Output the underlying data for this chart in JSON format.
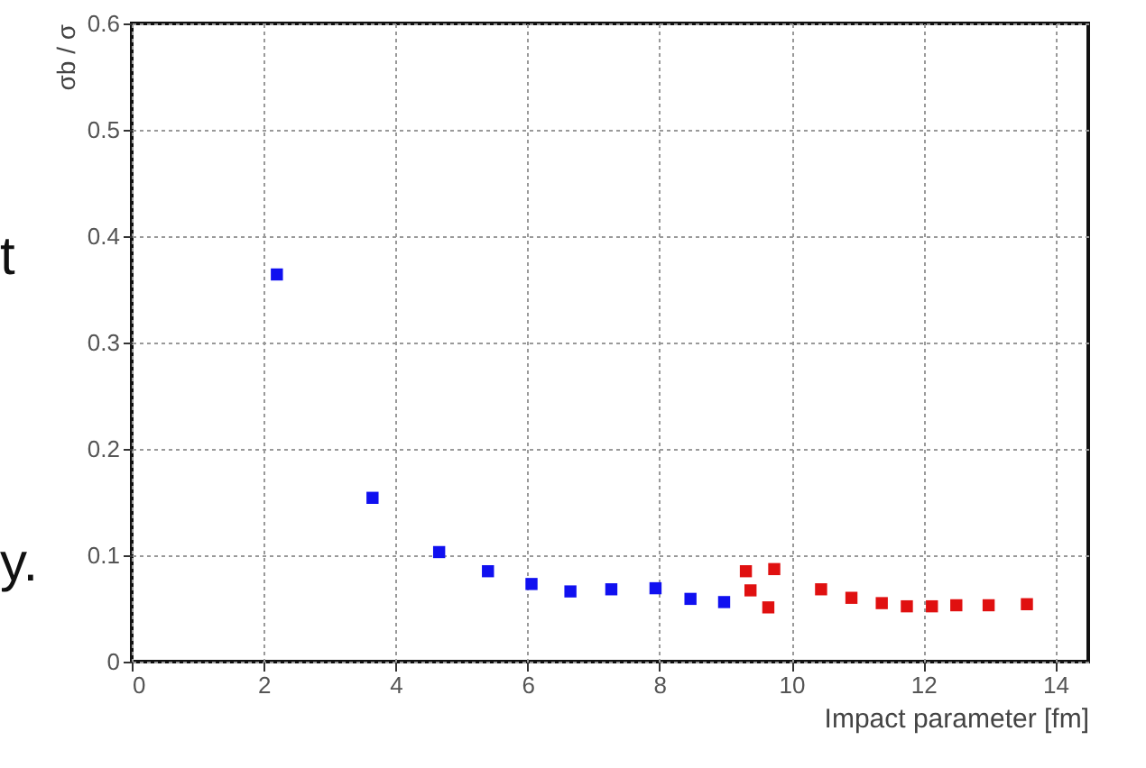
{
  "chart_data": {
    "type": "scatter",
    "xlabel": "Impact parameter [fm]",
    "ylabel": "σb / σ",
    "annotations": [
      "t",
      "y."
    ],
    "xlim": [
      0,
      14.5
    ],
    "xticks": [
      0,
      2,
      4,
      6,
      8,
      10,
      12,
      14
    ],
    "ylim": [
      0,
      0.6
    ],
    "yticks": [
      0,
      0.1,
      0.2,
      0.3,
      0.4,
      0.5,
      0.6
    ],
    "grid": true,
    "marker": "square",
    "series": [
      {
        "color": "#1010f0",
        "x": [
          2.2,
          3.65,
          4.66,
          5.4,
          6.06,
          6.65,
          7.27,
          7.94,
          8.47,
          8.98
        ],
        "values": [
          0.364,
          0.154,
          0.103,
          0.085,
          0.073,
          0.066,
          0.068,
          0.069,
          0.059,
          0.056
        ]
      },
      {
        "color": "#e01010",
        "x": [
          9.31,
          9.74,
          9.38,
          9.65,
          10.45,
          10.91,
          11.37,
          11.75,
          12.13,
          12.5,
          12.99,
          13.57
        ],
        "values": [
          0.085,
          0.087,
          0.067,
          0.051,
          0.068,
          0.06,
          0.055,
          0.052,
          0.052,
          0.053,
          0.053,
          0.054
        ]
      }
    ]
  }
}
